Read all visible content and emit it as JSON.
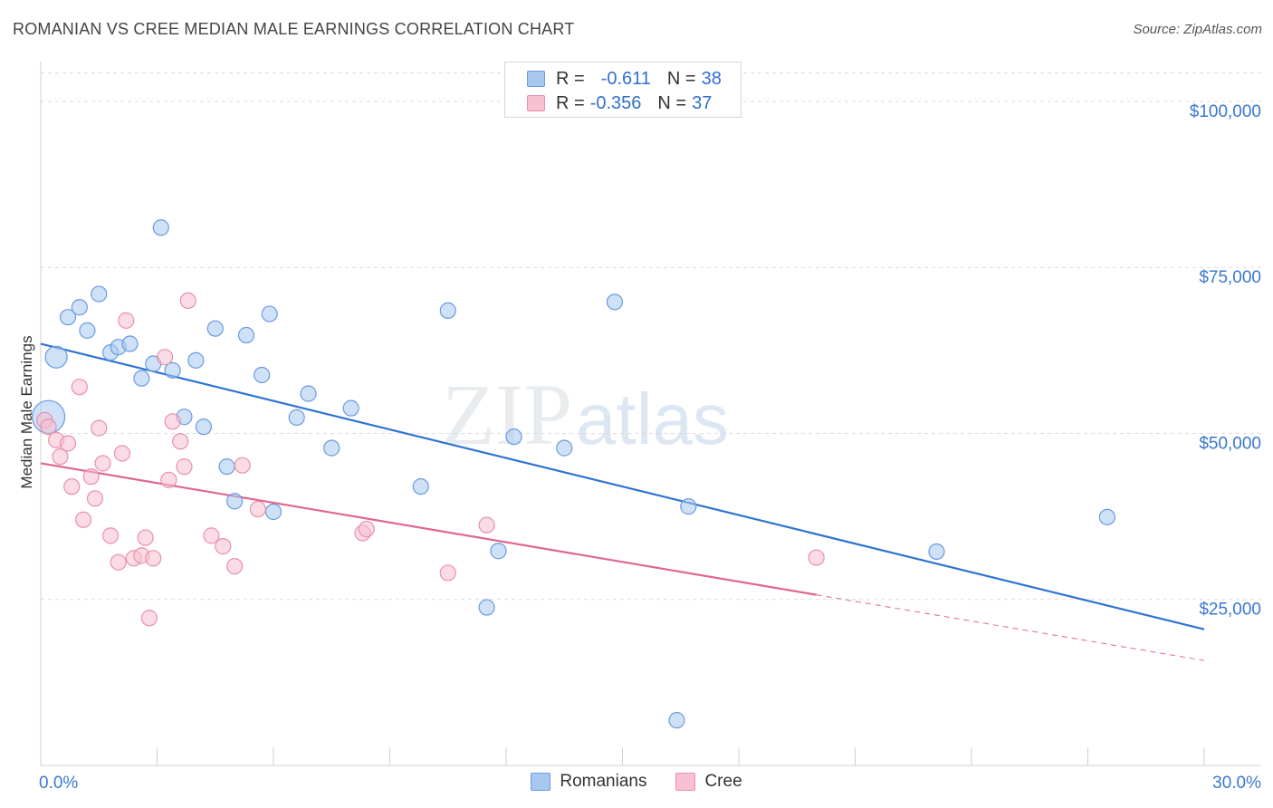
{
  "header": {
    "title": "ROMANIAN VS CREE MEDIAN MALE EARNINGS CORRELATION CHART",
    "source": "Source: ZipAtlas.com"
  },
  "watermark": {
    "part1": "ZIP",
    "part2": "atlas"
  },
  "legend": {
    "rows": [
      {
        "r_label": "R =",
        "r_value": "-0.611",
        "n_label": "N =",
        "n_value": "38",
        "color": "#a8c8f0",
        "border": "#6a9be0"
      },
      {
        "r_label": "R =",
        "r_value": "-0.356",
        "n_label": "N =",
        "n_value": "37",
        "color": "#f8c0d0",
        "border": "#e890ac"
      }
    ]
  },
  "bottom_legend": [
    {
      "label": "Romanians",
      "color": "#a8c8f0",
      "border": "#6a9be0"
    },
    {
      "label": "Cree",
      "color": "#f8c0d0",
      "border": "#e890ac"
    }
  ],
  "chart_data": {
    "type": "scatter",
    "title": "ROMANIAN VS CREE MEDIAN MALE EARNINGS CORRELATION CHART",
    "xlabel": "",
    "ylabel": "Median Male Earnings",
    "xlim": [
      0,
      30
    ],
    "ylim": [
      0,
      106000
    ],
    "x_tick_labels": [
      "0.0%",
      "30.0%"
    ],
    "y_ticks": [
      25000,
      50000,
      75000,
      100000
    ],
    "y_tick_labels": [
      "$25,000",
      "$50,000",
      "$75,000",
      "$100,000"
    ],
    "grid": true,
    "legend_position": "top-center",
    "series": [
      {
        "name": "Romanians",
        "color": "#6a9be0",
        "fill": "#a8c8f0",
        "trend_color": "#2f74d0",
        "trend": {
          "x0": 0,
          "y0": 63500,
          "x1": 30,
          "y1": 20500,
          "solid_until": 30
        },
        "points": [
          {
            "x": 0.2,
            "y": 52500,
            "s": 3
          },
          {
            "x": 0.4,
            "y": 61500,
            "s": 2
          },
          {
            "x": 0.7,
            "y": 67500,
            "s": 1
          },
          {
            "x": 1.0,
            "y": 69000,
            "s": 1
          },
          {
            "x": 1.2,
            "y": 65500,
            "s": 1
          },
          {
            "x": 1.5,
            "y": 71000,
            "s": 1
          },
          {
            "x": 1.8,
            "y": 62200,
            "s": 1
          },
          {
            "x": 2.0,
            "y": 63000,
            "s": 1
          },
          {
            "x": 2.3,
            "y": 63500,
            "s": 1
          },
          {
            "x": 2.6,
            "y": 58300,
            "s": 1
          },
          {
            "x": 2.9,
            "y": 60500,
            "s": 1
          },
          {
            "x": 3.1,
            "y": 81000,
            "s": 1
          },
          {
            "x": 3.4,
            "y": 59500,
            "s": 1
          },
          {
            "x": 3.7,
            "y": 52500,
            "s": 1
          },
          {
            "x": 4.0,
            "y": 61000,
            "s": 1
          },
          {
            "x": 4.2,
            "y": 51000,
            "s": 1
          },
          {
            "x": 4.5,
            "y": 65800,
            "s": 1
          },
          {
            "x": 4.8,
            "y": 45000,
            "s": 1
          },
          {
            "x": 5.0,
            "y": 39800,
            "s": 1
          },
          {
            "x": 5.3,
            "y": 64800,
            "s": 1
          },
          {
            "x": 5.7,
            "y": 58800,
            "s": 1
          },
          {
            "x": 5.9,
            "y": 68000,
            "s": 1
          },
          {
            "x": 6.0,
            "y": 38200,
            "s": 1
          },
          {
            "x": 6.6,
            "y": 52400,
            "s": 1
          },
          {
            "x": 6.9,
            "y": 56000,
            "s": 1
          },
          {
            "x": 7.5,
            "y": 47800,
            "s": 1
          },
          {
            "x": 8.0,
            "y": 53800,
            "s": 1
          },
          {
            "x": 9.8,
            "y": 42000,
            "s": 1
          },
          {
            "x": 10.5,
            "y": 68500,
            "s": 1
          },
          {
            "x": 11.5,
            "y": 23800,
            "s": 1
          },
          {
            "x": 11.8,
            "y": 32300,
            "s": 1
          },
          {
            "x": 12.2,
            "y": 49500,
            "s": 1
          },
          {
            "x": 13.5,
            "y": 47800,
            "s": 1
          },
          {
            "x": 14.8,
            "y": 69800,
            "s": 1
          },
          {
            "x": 16.4,
            "y": 6800,
            "s": 1
          },
          {
            "x": 16.7,
            "y": 39000,
            "s": 1
          },
          {
            "x": 23.1,
            "y": 32200,
            "s": 1
          },
          {
            "x": 27.5,
            "y": 37400,
            "s": 1
          }
        ]
      },
      {
        "name": "Cree",
        "color": "#e890ac",
        "fill": "#f8c0d0",
        "trend_color": "#e06690",
        "trend": {
          "x0": 0,
          "y0": 45500,
          "x1": 30,
          "y1": 15800,
          "solid_until": 20
        },
        "points": [
          {
            "x": 0.1,
            "y": 52000,
            "s": 1
          },
          {
            "x": 0.2,
            "y": 51000,
            "s": 1
          },
          {
            "x": 0.4,
            "y": 49000,
            "s": 1
          },
          {
            "x": 0.5,
            "y": 46500,
            "s": 1
          },
          {
            "x": 0.7,
            "y": 48500,
            "s": 1
          },
          {
            "x": 0.8,
            "y": 42000,
            "s": 1
          },
          {
            "x": 1.0,
            "y": 57000,
            "s": 1
          },
          {
            "x": 1.1,
            "y": 37000,
            "s": 1
          },
          {
            "x": 1.3,
            "y": 43500,
            "s": 1
          },
          {
            "x": 1.4,
            "y": 40200,
            "s": 1
          },
          {
            "x": 1.5,
            "y": 50800,
            "s": 1
          },
          {
            "x": 1.6,
            "y": 45500,
            "s": 1
          },
          {
            "x": 1.8,
            "y": 34600,
            "s": 1
          },
          {
            "x": 2.0,
            "y": 30600,
            "s": 1
          },
          {
            "x": 2.1,
            "y": 47000,
            "s": 1
          },
          {
            "x": 2.2,
            "y": 67000,
            "s": 1
          },
          {
            "x": 2.4,
            "y": 31200,
            "s": 1
          },
          {
            "x": 2.6,
            "y": 31600,
            "s": 1
          },
          {
            "x": 2.7,
            "y": 34300,
            "s": 1
          },
          {
            "x": 2.8,
            "y": 22200,
            "s": 1
          },
          {
            "x": 2.9,
            "y": 31200,
            "s": 1
          },
          {
            "x": 3.2,
            "y": 61500,
            "s": 1
          },
          {
            "x": 3.3,
            "y": 43000,
            "s": 1
          },
          {
            "x": 3.4,
            "y": 51800,
            "s": 1
          },
          {
            "x": 3.6,
            "y": 48800,
            "s": 1
          },
          {
            "x": 3.7,
            "y": 45000,
            "s": 1
          },
          {
            "x": 3.8,
            "y": 70000,
            "s": 1
          },
          {
            "x": 4.4,
            "y": 34600,
            "s": 1
          },
          {
            "x": 4.7,
            "y": 33000,
            "s": 1
          },
          {
            "x": 5.0,
            "y": 30000,
            "s": 1
          },
          {
            "x": 5.2,
            "y": 45200,
            "s": 1
          },
          {
            "x": 5.6,
            "y": 38600,
            "s": 1
          },
          {
            "x": 8.3,
            "y": 35000,
            "s": 1
          },
          {
            "x": 8.4,
            "y": 35600,
            "s": 1
          },
          {
            "x": 10.5,
            "y": 29000,
            "s": 1
          },
          {
            "x": 11.5,
            "y": 36200,
            "s": 1
          },
          {
            "x": 20.0,
            "y": 31300,
            "s": 1
          }
        ]
      }
    ]
  }
}
